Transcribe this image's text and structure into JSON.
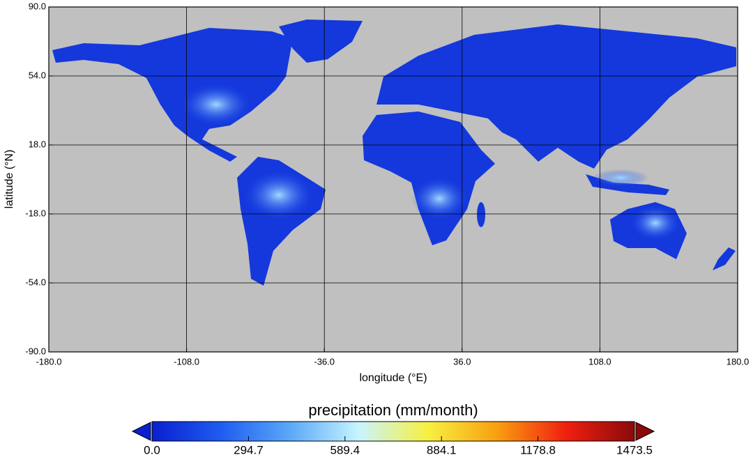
{
  "chart_data": {
    "type": "map",
    "xlabel": "longitude (°E)",
    "ylabel": "latitude (°N)",
    "xlim": [
      -180,
      180
    ],
    "ylim": [
      -90,
      90
    ],
    "xticks": [
      {
        "value": -180,
        "label": "-180.0"
      },
      {
        "value": -108,
        "label": "-108.0"
      },
      {
        "value": -36,
        "label": "-36.0"
      },
      {
        "value": 36,
        "label": "36.0"
      },
      {
        "value": 108,
        "label": "108.0"
      },
      {
        "value": 180,
        "label": "180.0"
      }
    ],
    "yticks": [
      {
        "value": 90,
        "label": "90.0"
      },
      {
        "value": 54,
        "label": "54.0"
      },
      {
        "value": 18,
        "label": "18.0"
      },
      {
        "value": -18,
        "label": "-18.0"
      },
      {
        "value": -54,
        "label": "-54.0"
      },
      {
        "value": -90,
        "label": "-90.0"
      }
    ],
    "grid": true,
    "colorbar": {
      "title": "precipitation (mm/month)",
      "lim": [
        0,
        1473.5
      ],
      "ticks": [
        {
          "value": 0,
          "label": "0.0"
        },
        {
          "value": 294.7,
          "label": "294.7"
        },
        {
          "value": 589.4,
          "label": "589.4"
        },
        {
          "value": 884.1,
          "label": "884.1"
        },
        {
          "value": 1178.8,
          "label": "1178.8"
        },
        {
          "value": 1473.5,
          "label": "1473.5"
        }
      ],
      "colors": [
        "#0a1fd0",
        "#1f5cf0",
        "#5aa8f8",
        "#c8f4ff",
        "#f8f040",
        "#f8a010",
        "#f02010",
        "#8a0a0a"
      ]
    }
  }
}
